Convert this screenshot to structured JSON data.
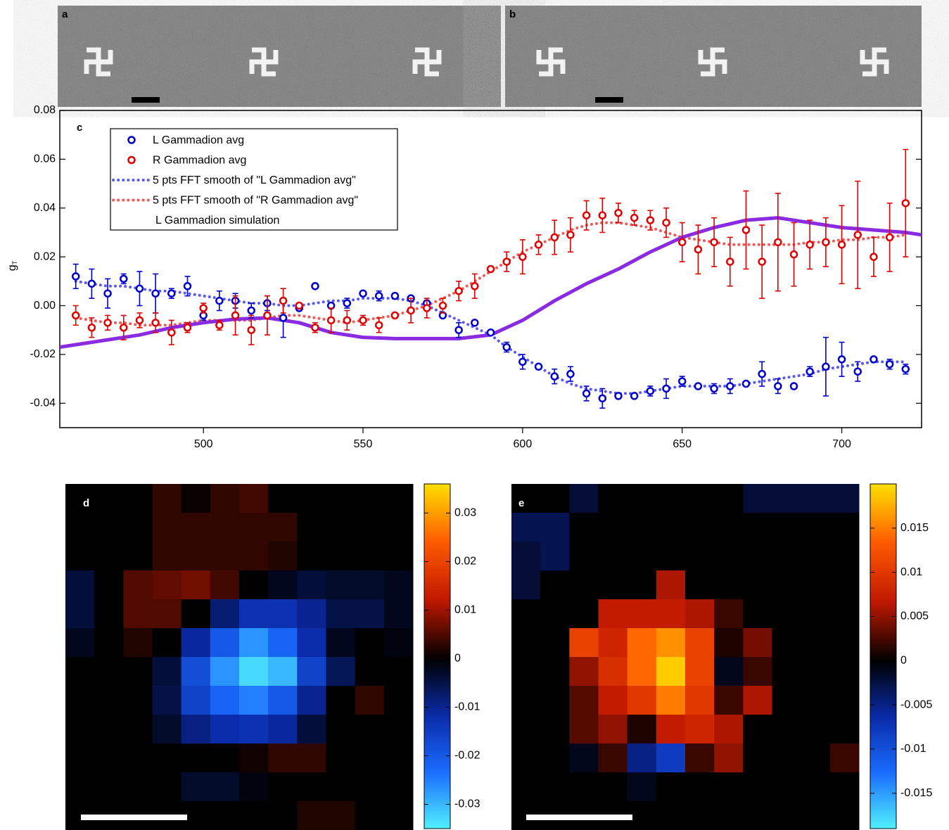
{
  "images": [
    {
      "label": "a"
    },
    {
      "label": "b"
    }
  ],
  "chart_data": [
    {
      "type": "scatter",
      "panel_label": "c",
      "y_label": "g",
      "y_label_sub": "T",
      "xlim": [
        455,
        725
      ],
      "ylim": [
        -0.05,
        0.08
      ],
      "xticks": [
        500,
        550,
        600,
        650,
        700
      ],
      "yticks": [
        -0.04,
        -0.02,
        {
          "value": 0,
          "label": "0.00"
        },
        0.02,
        0.04,
        0.06,
        0.08
      ],
      "legend": "upper left",
      "x": [
        460,
        465,
        470,
        475,
        480,
        485,
        490,
        495,
        500,
        505,
        510,
        515,
        520,
        525,
        530,
        535,
        540,
        545,
        550,
        555,
        560,
        565,
        570,
        575,
        580,
        585,
        590,
        595,
        600,
        605,
        610,
        615,
        620,
        625,
        630,
        635,
        640,
        645,
        650,
        655,
        660,
        665,
        670,
        675,
        680,
        685,
        690,
        695,
        700,
        705,
        710,
        715,
        720
      ],
      "series": [
        {
          "name": "L Gammadion avg",
          "color": "#0000cc",
          "style": "circle",
          "values": [
            0.012,
            0.009,
            0.005,
            0.011,
            0.007,
            0.005,
            0.005,
            0.008,
            -0.004,
            0.002,
            0.002,
            -0.002,
            0.001,
            -0.005,
            -0.001,
            0.008,
            0,
            0.001,
            0.005,
            0.004,
            0.004,
            0.003,
            0.001,
            -0.004,
            -0.01,
            -0.007,
            -0.011,
            -0.017,
            -0.023,
            -0.025,
            -0.029,
            -0.028,
            -0.036,
            -0.038,
            -0.037,
            -0.037,
            -0.035,
            -0.034,
            -0.031,
            -0.033,
            -0.034,
            -0.033,
            -0.032,
            -0.028,
            -0.033,
            -0.033,
            -0.027,
            -0.025,
            -0.022,
            -0.027,
            -0.022,
            -0.024,
            -0.026
          ],
          "errors": [
            0.005,
            0.006,
            0.006,
            0.002,
            0.007,
            0.008,
            0.002,
            0.004,
            0.002,
            0.004,
            0.003,
            0.003,
            0.003,
            0.008,
            0.001,
            0.001,
            0.001,
            0.002,
            0.001,
            0.002,
            0.001,
            0.001,
            0.001,
            0.001,
            0.003,
            0.001,
            0.001,
            0.002,
            0.003,
            0.001,
            0.003,
            0.003,
            0.003,
            0.004,
            0.001,
            0.001,
            0.002,
            0.004,
            0.002,
            0.001,
            0.002,
            0.003,
            0.001,
            0.005,
            0.003,
            0.001,
            0.002,
            0.012,
            0.007,
            0.004,
            0.001,
            0.002,
            0.002
          ]
        },
        {
          "name": "R Gammadion avg",
          "color": "#e00000",
          "style": "circle",
          "values": [
            -0.004,
            -0.009,
            -0.007,
            -0.009,
            -0.006,
            -0.007,
            -0.011,
            -0.009,
            -0.001,
            -0.008,
            -0.004,
            -0.01,
            -0.004,
            0.002,
            0,
            -0.009,
            -0.006,
            -0.006,
            -0.006,
            -0.008,
            -0.004,
            -0.002,
            -0.001,
            0,
            0.006,
            0.008,
            0.015,
            0.018,
            0.02,
            0.025,
            0.028,
            0.029,
            0.037,
            0.037,
            0.038,
            0.036,
            0.035,
            0.034,
            0.026,
            0.023,
            0.026,
            0.018,
            0.031,
            0.018,
            0.026,
            0.021,
            0.025,
            0.026,
            0.025,
            0.029,
            0.02,
            0.028,
            0.042
          ],
          "errors": [
            0.004,
            0.004,
            0.003,
            0.005,
            0.003,
            0.004,
            0.005,
            0.002,
            0.002,
            0.002,
            0.008,
            0.006,
            0.008,
            0.005,
            0.001,
            0.002,
            0.005,
            0.004,
            0.002,
            0.003,
            0.001,
            0.005,
            0.004,
            0.003,
            0.004,
            0.005,
            0.001,
            0.004,
            0.007,
            0.004,
            0.007,
            0.007,
            0.006,
            0.007,
            0.004,
            0.003,
            0.004,
            0.006,
            0.008,
            0.01,
            0.01,
            0.01,
            0.016,
            0.015,
            0.02,
            0.013,
            0.01,
            0.01,
            0.016,
            0.022,
            0.008,
            0.014,
            0.022
          ]
        },
        {
          "name": "5 pts FFT smooth of \"L Gammadion avg\"",
          "color": "#5a5af0",
          "style": "dotted",
          "values": [
            0.01,
            0.009,
            0.008,
            0.008,
            0.007,
            0.006,
            0.006,
            0.005,
            0.004,
            0.003,
            0.002,
            0.001,
            0.001,
            0,
            0,
            0.001,
            0.002,
            0.002,
            0.003,
            0.003,
            0.003,
            0.002,
            0,
            -0.003,
            -0.006,
            -0.009,
            -0.012,
            -0.017,
            -0.021,
            -0.025,
            -0.029,
            -0.032,
            -0.034,
            -0.035,
            -0.036,
            -0.036,
            -0.035,
            -0.034,
            -0.033,
            -0.033,
            -0.033,
            -0.033,
            -0.032,
            -0.031,
            -0.03,
            -0.029,
            -0.028,
            -0.026,
            -0.025,
            -0.024,
            -0.023,
            -0.023,
            -0.023
          ]
        },
        {
          "name": "5 pts FFT smooth of \"R Gammadion avg\"",
          "color": "#f05a5a",
          "style": "dotted",
          "values": [
            -0.005,
            -0.006,
            -0.007,
            -0.007,
            -0.008,
            -0.008,
            -0.008,
            -0.007,
            -0.006,
            -0.006,
            -0.006,
            -0.006,
            -0.005,
            -0.004,
            -0.004,
            -0.005,
            -0.006,
            -0.007,
            -0.006,
            -0.005,
            -0.004,
            -0.002,
            0,
            0.003,
            0.006,
            0.01,
            0.014,
            0.018,
            0.022,
            0.025,
            0.028,
            0.031,
            0.033,
            0.034,
            0.034,
            0.033,
            0.032,
            0.03,
            0.028,
            0.027,
            0.026,
            0.025,
            0.025,
            0.025,
            0.025,
            0.025,
            0.026,
            0.026,
            0.027,
            0.027,
            0.028,
            0.028,
            0.029
          ]
        },
        {
          "name": "L Gammadion simulation",
          "color": "#8a2be2",
          "style": "solid",
          "x": [
            455,
            470,
            480,
            490,
            500,
            510,
            520,
            530,
            540,
            550,
            560,
            570,
            580,
            590,
            600,
            610,
            620,
            630,
            640,
            650,
            660,
            670,
            680,
            690,
            700,
            710,
            720,
            725
          ],
          "values": [
            -0.017,
            -0.014,
            -0.012,
            -0.009,
            -0.007,
            -0.0055,
            -0.005,
            -0.007,
            -0.011,
            -0.013,
            -0.0135,
            -0.0135,
            -0.0135,
            -0.012,
            -0.006,
            0.002,
            0.009,
            0.015,
            0.022,
            0.028,
            0.032,
            0.035,
            0.036,
            0.034,
            0.032,
            0.031,
            0.03,
            0.029
          ]
        }
      ]
    },
    {
      "type": "heatmap",
      "panel_label": "d",
      "zlim": [
        -0.035,
        0.036
      ],
      "colorbar_ticks": [
        0.03,
        0.02,
        0.01,
        0,
        -0.01,
        -0.02,
        -0.03
      ],
      "colormap_negative": [
        "#000000",
        "#0a2aa8",
        "#1a6cff",
        "#50f0ff"
      ],
      "colormap_positive": [
        "#000000",
        "#c01800",
        "#ff5a00",
        "#ffe000"
      ],
      "values": [
        [
          0,
          0,
          0,
          0.003,
          0.0005,
          0.003,
          0.004,
          0,
          0,
          0,
          0,
          0
        ],
        [
          0,
          0,
          0,
          0.003,
          0.003,
          0.003,
          0.003,
          0.003,
          0,
          0,
          0,
          0
        ],
        [
          0,
          0,
          0,
          0.003,
          0.003,
          0.003,
          0.003,
          0.002,
          0,
          0,
          0,
          0
        ],
        [
          -0.004,
          0,
          0.005,
          0.006,
          0.007,
          0.004,
          0,
          -0.002,
          -0.004,
          -0.003,
          -0.003,
          -0.002
        ],
        [
          -0.004,
          0,
          0.005,
          0.005,
          0,
          -0.008,
          -0.013,
          -0.013,
          -0.01,
          -0.005,
          -0.005,
          -0.002
        ],
        [
          -0.002,
          0,
          0.002,
          0,
          -0.011,
          -0.02,
          -0.027,
          -0.022,
          -0.012,
          -0.002,
          0,
          -0.001
        ],
        [
          0,
          0,
          0,
          -0.004,
          -0.018,
          -0.027,
          -0.033,
          -0.03,
          -0.016,
          -0.006,
          0,
          0
        ],
        [
          0,
          0,
          0,
          -0.005,
          -0.016,
          -0.022,
          -0.025,
          -0.02,
          -0.01,
          0,
          0.003,
          0
        ],
        [
          0,
          0,
          0,
          -0.003,
          -0.009,
          -0.012,
          -0.013,
          -0.011,
          -0.004,
          0,
          0,
          0
        ],
        [
          0,
          0,
          0,
          0,
          0,
          0,
          0.001,
          0.003,
          0.003,
          0,
          0,
          0
        ],
        [
          0,
          0,
          0,
          0,
          -0.003,
          -0.003,
          -0.001,
          0,
          0,
          0,
          0,
          0
        ],
        [
          0,
          0,
          0,
          0,
          0,
          0,
          0,
          0,
          0.002,
          0.002,
          0,
          0
        ]
      ]
    },
    {
      "type": "heatmap",
      "panel_label": "e",
      "zlim": [
        -0.019,
        0.02
      ],
      "colorbar_ticks": [
        0.015,
        0.01,
        0.005,
        0,
        -0.005,
        -0.01,
        -0.015
      ],
      "colormap_negative": [
        "#000000",
        "#0a2aa8",
        "#1a6cff",
        "#50f0ff"
      ],
      "colormap_positive": [
        "#000000",
        "#c01800",
        "#ff5a00",
        "#ffe000"
      ],
      "values": [
        [
          0,
          0,
          -0.002,
          0,
          0,
          0,
          0,
          0,
          -0.002,
          -0.002,
          -0.002,
          -0.002
        ],
        [
          -0.003,
          -0.003,
          0,
          0,
          0,
          0,
          0,
          0,
          0,
          0,
          0,
          0
        ],
        [
          -0.002,
          -0.003,
          0,
          0,
          0,
          0,
          0,
          0,
          0,
          0,
          0,
          0
        ],
        [
          -0.002,
          0,
          0,
          0,
          0,
          0.006,
          0,
          0,
          0,
          0,
          0,
          0
        ],
        [
          0,
          0,
          0,
          0.007,
          0.007,
          0.007,
          0.006,
          0.002,
          0,
          0,
          0,
          0
        ],
        [
          0,
          0,
          0.011,
          0.008,
          0.014,
          0.016,
          0.011,
          0.001,
          0.004,
          0,
          0,
          0
        ],
        [
          0,
          0,
          0.005,
          0.009,
          0.014,
          0.019,
          0.011,
          -0.001,
          0.002,
          0,
          0,
          0
        ],
        [
          0,
          0,
          0.003,
          0.007,
          0.01,
          0.015,
          0.01,
          0.002,
          0.006,
          0,
          0,
          0
        ],
        [
          0,
          0,
          0.003,
          0.005,
          0.001,
          0.007,
          0.008,
          0.006,
          0,
          0,
          0,
          0
        ],
        [
          0,
          0,
          -0.001,
          0.002,
          -0.005,
          -0.008,
          0.002,
          0.005,
          0,
          0,
          0,
          0.002
        ],
        [
          0,
          0,
          0,
          0,
          -0.001,
          0,
          0,
          0,
          0,
          0,
          0,
          0
        ],
        [
          0,
          0,
          0,
          0,
          0,
          0,
          0,
          0,
          0,
          0,
          0,
          0
        ]
      ]
    }
  ]
}
